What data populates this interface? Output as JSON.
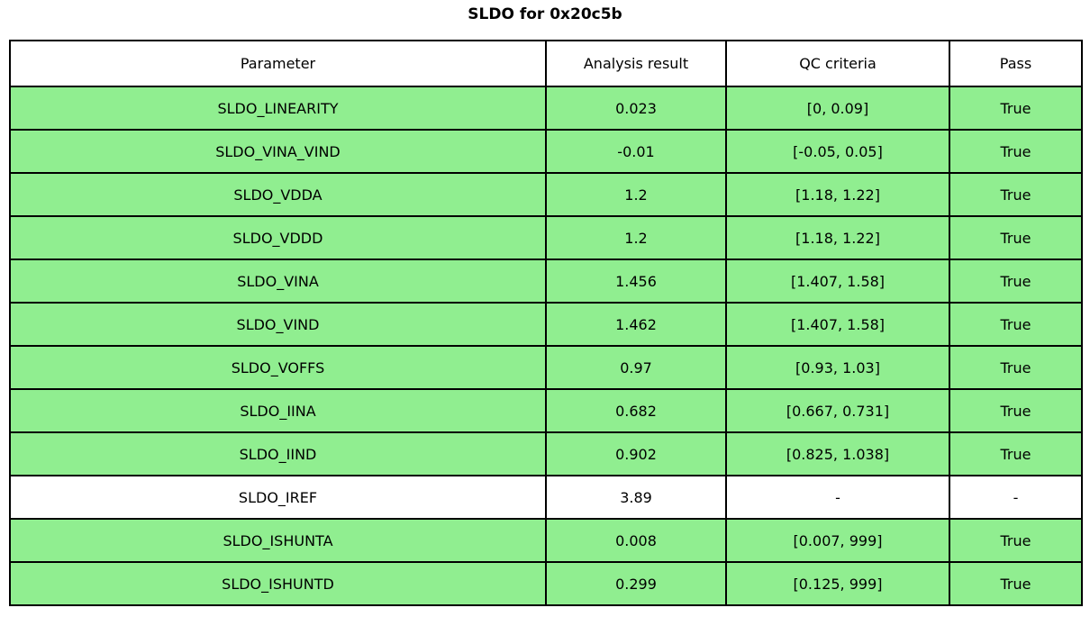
{
  "title": "SLDO for 0x20c5b",
  "colors": {
    "pass_row_bg": "#90EE90",
    "neutral_row_bg": "#FFFFFF",
    "border": "#000000",
    "text": "#000000"
  },
  "table": {
    "headers": [
      "Parameter",
      "Analysis result",
      "QC criteria",
      "Pass"
    ],
    "rows": [
      {
        "parameter": "SLDO_LINEARITY",
        "result": "0.023",
        "criteria": "[0, 0.09]",
        "pass": "True",
        "highlight": true
      },
      {
        "parameter": "SLDO_VINA_VIND",
        "result": "-0.01",
        "criteria": "[-0.05, 0.05]",
        "pass": "True",
        "highlight": true
      },
      {
        "parameter": "SLDO_VDDA",
        "result": "1.2",
        "criteria": "[1.18, 1.22]",
        "pass": "True",
        "highlight": true
      },
      {
        "parameter": "SLDO_VDDD",
        "result": "1.2",
        "criteria": "[1.18, 1.22]",
        "pass": "True",
        "highlight": true
      },
      {
        "parameter": "SLDO_VINA",
        "result": "1.456",
        "criteria": "[1.407, 1.58]",
        "pass": "True",
        "highlight": true
      },
      {
        "parameter": "SLDO_VIND",
        "result": "1.462",
        "criteria": "[1.407, 1.58]",
        "pass": "True",
        "highlight": true
      },
      {
        "parameter": "SLDO_VOFFS",
        "result": "0.97",
        "criteria": "[0.93, 1.03]",
        "pass": "True",
        "highlight": true
      },
      {
        "parameter": "SLDO_IINA",
        "result": "0.682",
        "criteria": "[0.667, 0.731]",
        "pass": "True",
        "highlight": true
      },
      {
        "parameter": "SLDO_IIND",
        "result": "0.902",
        "criteria": "[0.825, 1.038]",
        "pass": "True",
        "highlight": true
      },
      {
        "parameter": "SLDO_IREF",
        "result": "3.89",
        "criteria": "-",
        "pass": "-",
        "highlight": false
      },
      {
        "parameter": "SLDO_ISHUNTA",
        "result": "0.008",
        "criteria": "[0.007, 999]",
        "pass": "True",
        "highlight": true
      },
      {
        "parameter": "SLDO_ISHUNTD",
        "result": "0.299",
        "criteria": "[0.125, 999]",
        "pass": "True",
        "highlight": true
      }
    ]
  }
}
